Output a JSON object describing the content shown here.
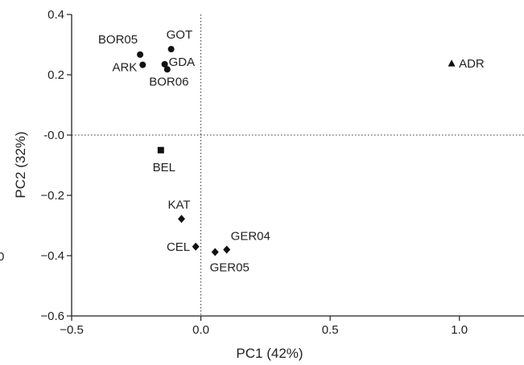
{
  "chart_data": {
    "type": "scatter",
    "xlabel": "PC1 (42%)",
    "ylabel": "PC2 (32%)",
    "xlim": [
      -0.5,
      1.25
    ],
    "ylim": [
      -0.6,
      0.4
    ],
    "x_ticks": [
      -0.5,
      0.0,
      0.5,
      1.0
    ],
    "x_tick_labels": [
      "−0.5",
      "0.0",
      "0.5",
      "1.0"
    ],
    "y_ticks": [
      0.4,
      0.2,
      0.0,
      -0.2,
      -0.4,
      -0.6
    ],
    "y_tick_labels": [
      "0.4",
      "0.2",
      "-0.0",
      "−0.2",
      "−0.4",
      "−0.6"
    ],
    "grid": false,
    "zero_lines": "dotted",
    "stray_text": "0",
    "points": [
      {
        "label": "BOR05",
        "x": -0.235,
        "y": 0.267,
        "marker": "circle"
      },
      {
        "label": "GOT",
        "x": -0.115,
        "y": 0.285,
        "marker": "circle"
      },
      {
        "label": "ARK",
        "x": -0.225,
        "y": 0.233,
        "marker": "circle"
      },
      {
        "label": "GDA",
        "x": -0.14,
        "y": 0.235,
        "marker": "circle"
      },
      {
        "label": "BOR06",
        "x": -0.13,
        "y": 0.218,
        "marker": "circle"
      },
      {
        "label": "ADR",
        "x": 0.97,
        "y": 0.237,
        "marker": "triangle"
      },
      {
        "label": "BEL",
        "x": -0.155,
        "y": -0.05,
        "marker": "square"
      },
      {
        "label": "KAT",
        "x": -0.075,
        "y": -0.278,
        "marker": "diamond"
      },
      {
        "label": "CEL",
        "x": -0.02,
        "y": -0.37,
        "marker": "diamond"
      },
      {
        "label": "GER04",
        "x": 0.1,
        "y": -0.38,
        "marker": "diamond"
      },
      {
        "label": "GER05",
        "x": 0.055,
        "y": -0.388,
        "marker": "diamond"
      }
    ]
  }
}
